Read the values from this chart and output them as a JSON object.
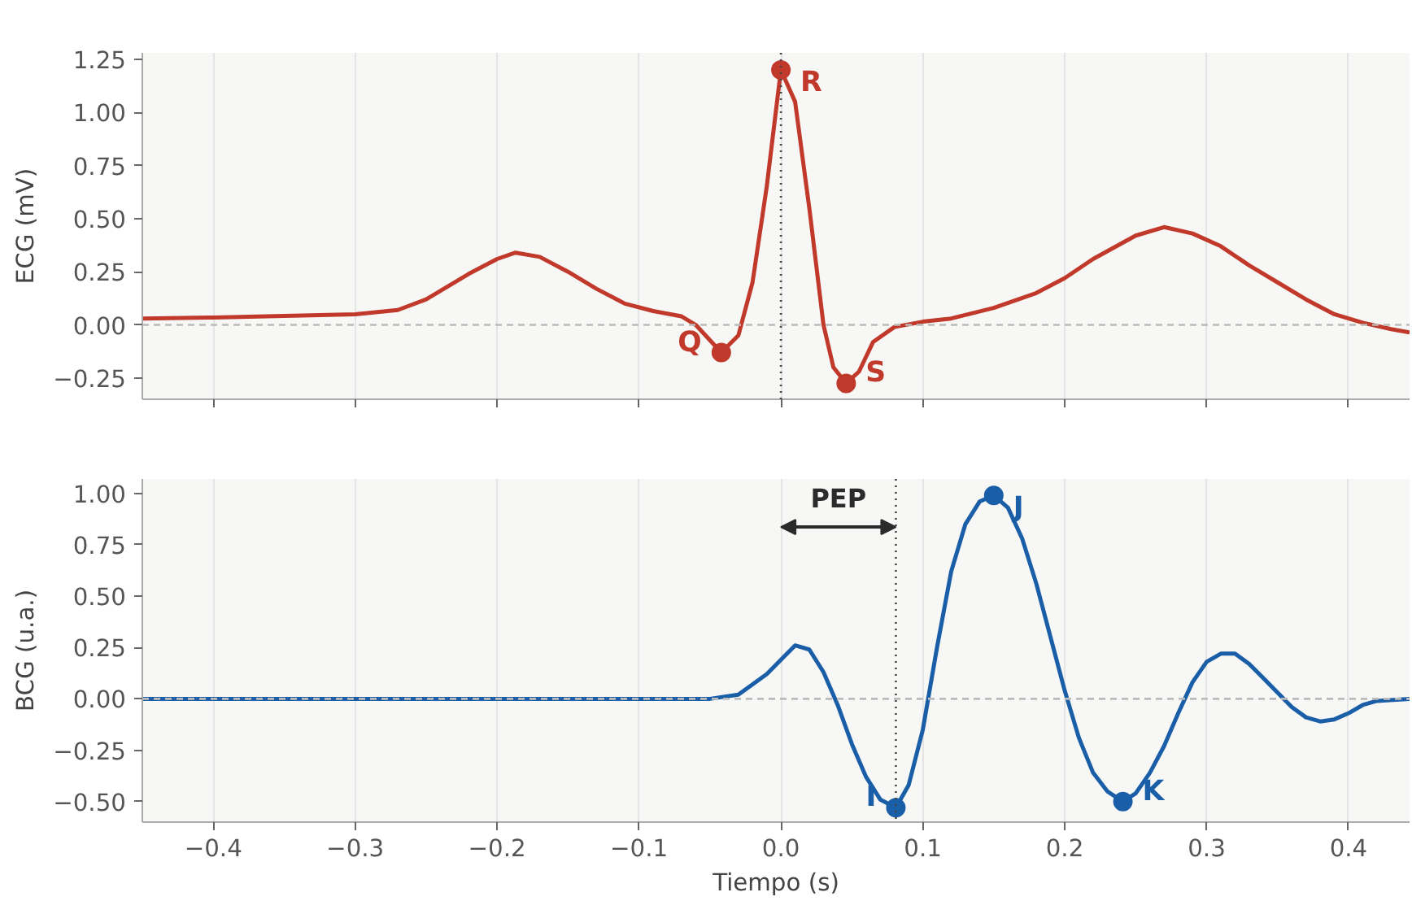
{
  "chart_data": [
    {
      "type": "line",
      "ylabel": "ECG (mV)",
      "xlim": [
        -0.45,
        0.443
      ],
      "ylim": [
        -0.35,
        1.28
      ],
      "xticks": [
        -0.4,
        -0.3,
        -0.2,
        -0.1,
        0,
        0.1,
        0.2,
        0.3,
        0.4
      ],
      "yticks": [
        -0.25,
        {
          "value": 0,
          "label": "0.00"
        },
        0.25,
        {
          "value": 0.5,
          "label": "0.50"
        },
        0.75,
        {
          "value": 1,
          "label": "1.00"
        },
        1.25
      ],
      "tick_labels": "y",
      "grid": "x",
      "line_style": "solid",
      "series": [
        {
          "color": "#c0392b",
          "x": [
            -0.45,
            -0.4,
            -0.35,
            -0.3,
            -0.27,
            -0.25,
            -0.22,
            -0.2,
            -0.187,
            -0.17,
            -0.15,
            -0.13,
            -0.11,
            -0.09,
            -0.07,
            -0.06,
            -0.042,
            -0.03,
            -0.02,
            -0.01,
            0.0,
            0.01,
            0.02,
            0.03,
            0.037,
            0.046,
            0.055,
            0.065,
            0.08,
            0.1,
            0.12,
            0.15,
            0.18,
            0.2,
            0.22,
            0.25,
            0.27,
            0.29,
            0.31,
            0.33,
            0.35,
            0.37,
            0.39,
            0.41,
            0.43,
            0.443
          ],
          "values": [
            0.03,
            0.035,
            0.042,
            0.05,
            0.07,
            0.12,
            0.24,
            0.31,
            0.34,
            0.32,
            0.25,
            0.17,
            0.1,
            0.065,
            0.04,
            0.0,
            -0.13,
            -0.05,
            0.2,
            0.65,
            1.2,
            1.05,
            0.55,
            0.0,
            -0.2,
            -0.275,
            -0.22,
            -0.08,
            -0.01,
            0.015,
            0.03,
            0.08,
            0.15,
            0.22,
            0.31,
            0.42,
            0.46,
            0.43,
            0.37,
            0.28,
            0.2,
            0.12,
            0.05,
            0.01,
            -0.02,
            -0.035
          ]
        },
        {
          "type": "scatter",
          "marker": "circle",
          "color": "#c0392b",
          "x": [
            -0.042,
            0.0,
            0.046
          ],
          "values": [
            -0.13,
            1.2,
            -0.275
          ]
        }
      ],
      "ref_lines": [
        {
          "axis": "y",
          "value": 0,
          "color": "#bbbbbb",
          "line_style": "dashed"
        },
        {
          "axis": "x",
          "value": 0,
          "color": "#444444",
          "line_style": "dotted"
        }
      ],
      "annotations": [
        {
          "text": "Q",
          "x": -0.042,
          "y": -0.13
        },
        {
          "text": "R",
          "x": 0.0,
          "y": 1.2
        },
        {
          "text": "S",
          "x": 0.046,
          "y": -0.275
        }
      ]
    },
    {
      "type": "line",
      "ylabel": "BCG (u.a.)",
      "xlabel": "Tiempo (s)",
      "xlim": [
        -0.45,
        0.443
      ],
      "ylim": [
        -0.6,
        1.07
      ],
      "xticks": [
        -0.4,
        -0.3,
        -0.2,
        -0.1,
        {
          "value": 0,
          "label": "0.0"
        },
        0.1,
        0.2,
        0.3,
        0.4
      ],
      "yticks": [
        {
          "value": -0.5,
          "label": "−0.50"
        },
        -0.25,
        {
          "value": 0,
          "label": "0.00"
        },
        0.25,
        {
          "value": 0.5,
          "label": "0.50"
        },
        0.75,
        {
          "value": 1,
          "label": "1.00"
        }
      ],
      "grid": "x",
      "line_style": "solid",
      "series": [
        {
          "color": "#1a5ea8",
          "x": [
            -0.45,
            -0.4,
            -0.3,
            -0.2,
            -0.1,
            -0.05,
            -0.03,
            -0.01,
            0.01,
            0.02,
            0.03,
            0.04,
            0.05,
            0.06,
            0.07,
            0.081,
            0.09,
            0.1,
            0.11,
            0.12,
            0.13,
            0.14,
            0.15,
            0.16,
            0.17,
            0.18,
            0.19,
            0.2,
            0.21,
            0.22,
            0.23,
            0.241,
            0.25,
            0.26,
            0.27,
            0.28,
            0.29,
            0.3,
            0.31,
            0.32,
            0.33,
            0.34,
            0.35,
            0.36,
            0.37,
            0.38,
            0.39,
            0.4,
            0.41,
            0.42,
            0.443
          ],
          "values": [
            0.0,
            0.0,
            0.0,
            0.0,
            0.0,
            0.0,
            0.02,
            0.12,
            0.26,
            0.24,
            0.13,
            -0.03,
            -0.22,
            -0.38,
            -0.49,
            -0.53,
            -0.42,
            -0.15,
            0.25,
            0.62,
            0.85,
            0.96,
            0.99,
            0.93,
            0.78,
            0.56,
            0.3,
            0.04,
            -0.19,
            -0.36,
            -0.45,
            -0.5,
            -0.46,
            -0.36,
            -0.23,
            -0.07,
            0.08,
            0.18,
            0.22,
            0.22,
            0.17,
            0.1,
            0.03,
            -0.04,
            -0.09,
            -0.11,
            -0.1,
            -0.07,
            -0.03,
            -0.01,
            0.0
          ]
        },
        {
          "type": "scatter",
          "marker": "circle",
          "color": "#1a5ea8",
          "x": [
            0.081,
            0.15,
            0.241
          ],
          "values": [
            -0.53,
            0.99,
            -0.5
          ]
        }
      ],
      "ref_lines": [
        {
          "axis": "y",
          "value": 0,
          "color": "#bbbbbb",
          "line_style": "dashed"
        },
        {
          "axis": "x",
          "value": 0.081,
          "color": "#444444",
          "line_style": "dotted"
        }
      ],
      "annotations": [
        "PEP",
        {
          "text": "I",
          "x": 0.081,
          "y": -0.53
        },
        {
          "text": "J",
          "x": 0.15,
          "y": 0.99
        },
        {
          "text": "K",
          "x": 0.241,
          "y": -0.5
        }
      ]
    }
  ]
}
